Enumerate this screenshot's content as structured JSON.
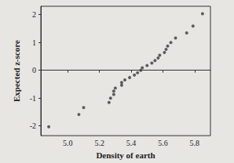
{
  "chart_data": {
    "type": "scatter",
    "x_label": "Density of earth",
    "y_label": "Expected z-score",
    "x": [
      4.88,
      5.07,
      5.1,
      5.26,
      5.27,
      5.29,
      5.29,
      5.3,
      5.34,
      5.34,
      5.36,
      5.39,
      5.42,
      5.44,
      5.46,
      5.47,
      5.5,
      5.53,
      5.55,
      5.57,
      5.58,
      5.61,
      5.62,
      5.63,
      5.65,
      5.68,
      5.75,
      5.79,
      5.85
    ],
    "values": [
      -2.03,
      -1.59,
      -1.34,
      -1.16,
      -1.0,
      -0.87,
      -0.75,
      -0.64,
      -0.54,
      -0.44,
      -0.35,
      -0.26,
      -0.17,
      -0.09,
      0,
      0.09,
      0.17,
      0.26,
      0.35,
      0.44,
      0.54,
      0.64,
      0.75,
      0.87,
      1.0,
      1.16,
      1.34,
      1.59,
      2.03
    ],
    "color": "#3a3a3a",
    "marker": "circle",
    "xlim": [
      4.83,
      5.9
    ],
    "xticks": [
      {
        "value": 5,
        "label": "5.0"
      },
      5.2,
      5.4,
      5.6,
      5.8
    ],
    "ylim": [
      -2.35,
      2.3
    ],
    "yticks": [
      -2,
      -1,
      0,
      1,
      2
    ],
    "grid": false
  }
}
